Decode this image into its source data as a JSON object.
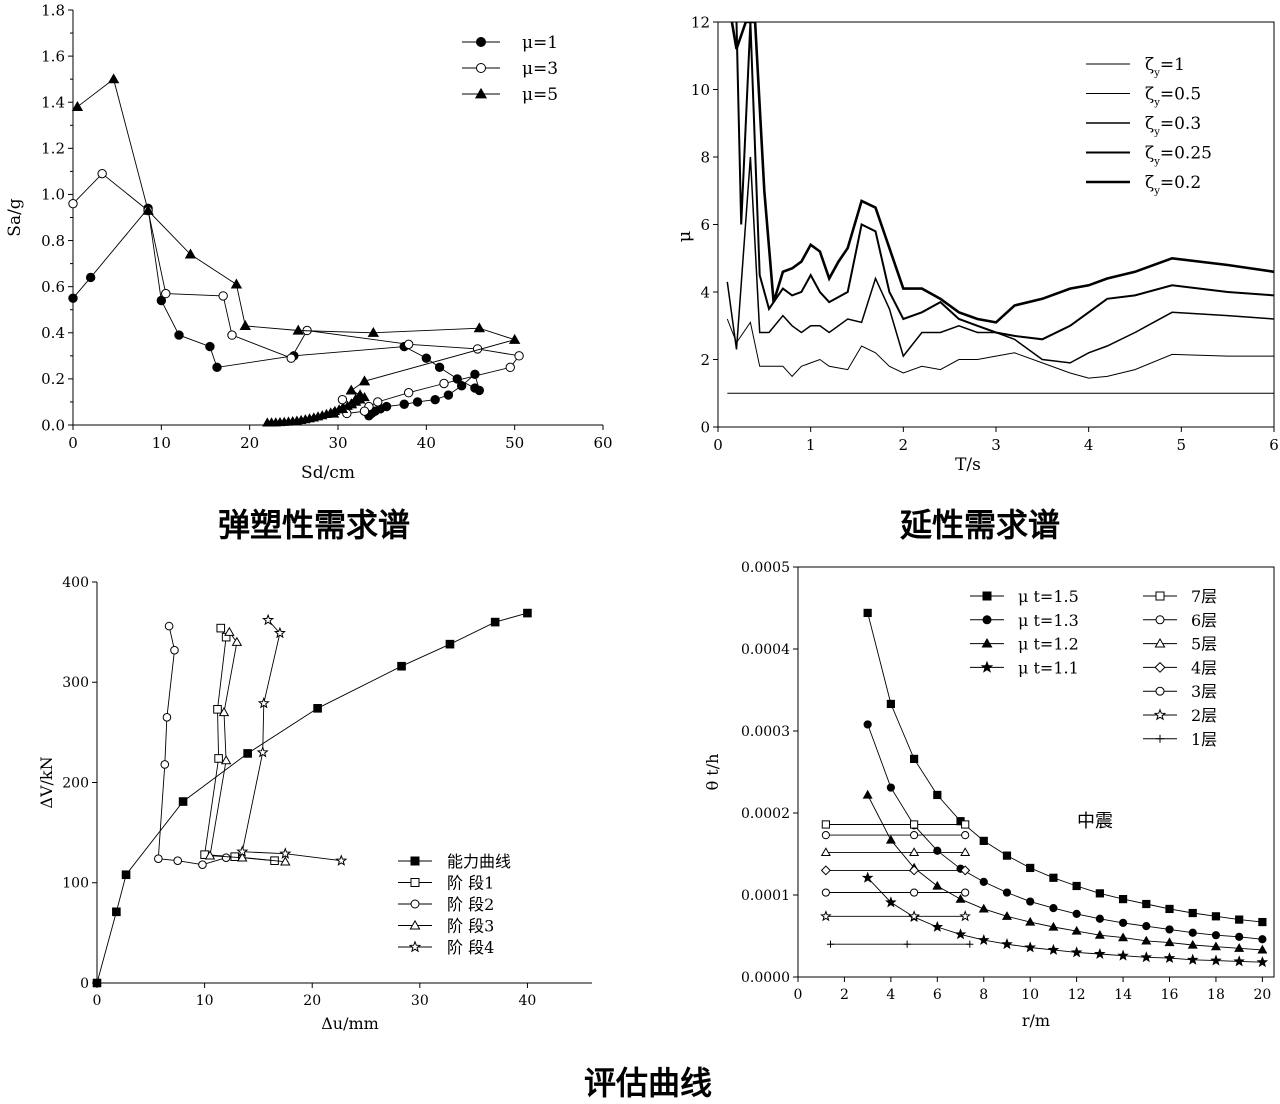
{
  "captions": {
    "chart1": "弹塑性需求谱",
    "chart2": "延性需求谱",
    "chart3": "评估曲线"
  },
  "chart_data": [
    {
      "type": "scatter",
      "xlabel": "Sd/cm",
      "ylabel": "Sa/g",
      "xlim": [
        0,
        60
      ],
      "ylim": [
        0,
        1.8
      ],
      "x_ticks": [
        "0",
        "10",
        "20",
        "30",
        "40",
        "50",
        "60"
      ],
      "y_ticks": [
        "0.0",
        "0.2",
        "0.4",
        "0.6",
        "0.8",
        "1.0",
        "1.2",
        "1.4",
        "1.6",
        "1.8"
      ],
      "legend_position": "top-right",
      "series": [
        {
          "name": "μ=1",
          "marker": "filled-circle",
          "x": [
            0,
            2,
            8.5,
            10,
            12,
            15.5,
            16.3,
            25,
            37.5,
            40,
            41.5,
            43.5,
            45.5,
            46,
            45.5,
            44,
            42.5,
            41,
            39,
            37.5,
            35.5,
            34.8,
            34.2,
            33.8,
            33.5
          ],
          "y": [
            0.55,
            0.64,
            0.94,
            0.54,
            0.39,
            0.34,
            0.25,
            0.3,
            0.34,
            0.29,
            0.25,
            0.2,
            0.16,
            0.15,
            0.22,
            0.17,
            0.13,
            0.11,
            0.1,
            0.09,
            0.08,
            0.07,
            0.06,
            0.05,
            0.04
          ]
        },
        {
          "name": "μ=3",
          "marker": "open-circle",
          "x": [
            0,
            3.3,
            8.5,
            10.5,
            17,
            18,
            24.7,
            26.5,
            38,
            45.8,
            50.5,
            49.5,
            42,
            38,
            34.5,
            33.5,
            33,
            31,
            30.5
          ],
          "y": [
            0.96,
            1.09,
            0.93,
            0.57,
            0.56,
            0.39,
            0.29,
            0.41,
            0.35,
            0.33,
            0.3,
            0.25,
            0.18,
            0.14,
            0.1,
            0.08,
            0.06,
            0.05,
            0.11
          ]
        },
        {
          "name": "μ=5",
          "marker": "filled-triangle",
          "x": [
            0.5,
            4.6,
            8.5,
            13.3,
            18.5,
            19.5,
            25.5,
            34,
            46,
            50,
            33,
            31.5,
            32.5,
            32,
            31.5,
            30.5,
            29.5
          ],
          "y": [
            1.38,
            1.5,
            0.93,
            0.74,
            0.61,
            0.43,
            0.41,
            0.4,
            0.42,
            0.37,
            0.19,
            0.15,
            0.13,
            0.11,
            0.09,
            0.07,
            0.05
          ]
        }
      ],
      "tail_cluster": {
        "x_from": 22,
        "x_to": 33,
        "y_from": 0.01,
        "y_to": 0.12
      }
    },
    {
      "type": "line",
      "xlabel": "T/s",
      "ylabel": "μ",
      "xlim": [
        0,
        6
      ],
      "ylim": [
        0,
        12
      ],
      "x_ticks": [
        "0",
        "1",
        "2",
        "3",
        "4",
        "5",
        "6"
      ],
      "y_ticks": [
        "0",
        "2",
        "4",
        "6",
        "8",
        "10",
        "12"
      ],
      "legend_position": "top-right",
      "series": [
        {
          "name": "ζ",
          "sub": "y",
          "suffix": "=1",
          "stroke": 1,
          "x": [
            0.1,
            6
          ],
          "y": [
            1,
            1
          ]
        },
        {
          "name": "ζ",
          "sub": "y",
          "suffix": "=0.5",
          "stroke": 1,
          "x": [
            0.1,
            0.2,
            0.35,
            0.45,
            0.55,
            0.7,
            0.8,
            0.9,
            1.0,
            1.1,
            1.2,
            1.4,
            1.55,
            1.7,
            1.85,
            2.0,
            2.2,
            2.4,
            2.6,
            2.8,
            3.0,
            3.2,
            3.5,
            3.8,
            4.0,
            4.2,
            4.5,
            4.9,
            5.5,
            6.0
          ],
          "y": [
            3.2,
            2.5,
            3.1,
            1.8,
            1.8,
            1.8,
            1.5,
            1.8,
            1.9,
            2.0,
            1.8,
            1.7,
            2.4,
            2.2,
            1.8,
            1.6,
            1.8,
            1.7,
            2.0,
            2.0,
            2.1,
            2.2,
            1.9,
            1.6,
            1.45,
            1.5,
            1.7,
            2.15,
            2.1,
            2.1
          ]
        },
        {
          "name": "ζ",
          "sub": "y",
          "suffix": "=0.3",
          "stroke": 1.5,
          "x": [
            0.1,
            0.2,
            0.35,
            0.45,
            0.55,
            0.7,
            0.8,
            0.9,
            1.0,
            1.1,
            1.2,
            1.4,
            1.55,
            1.7,
            1.85,
            2.0,
            2.2,
            2.4,
            2.6,
            2.8,
            3.0,
            3.2,
            3.5,
            3.8,
            4.0,
            4.2,
            4.5,
            4.9,
            5.5,
            6.0
          ],
          "y": [
            4.3,
            2.3,
            8.0,
            2.8,
            2.8,
            3.3,
            3.0,
            2.8,
            3.0,
            3.0,
            2.8,
            3.2,
            3.1,
            4.4,
            3.5,
            2.1,
            2.8,
            2.8,
            3.0,
            2.8,
            2.8,
            2.6,
            2.0,
            1.9,
            2.2,
            2.4,
            2.8,
            3.4,
            3.3,
            3.2
          ]
        },
        {
          "name": "ζ",
          "sub": "y",
          "suffix": "=0.25",
          "stroke": 2,
          "x": [
            0.2,
            0.25,
            0.35,
            0.45,
            0.55,
            0.7,
            0.8,
            0.9,
            1.0,
            1.1,
            1.2,
            1.4,
            1.55,
            1.7,
            1.85,
            2.0,
            2.2,
            2.4,
            2.6,
            2.8,
            3.0,
            3.2,
            3.5,
            3.8,
            4.0,
            4.2,
            4.5,
            4.9,
            5.5,
            6.0
          ],
          "y": [
            12,
            6.0,
            12,
            4.5,
            3.5,
            4.1,
            3.9,
            4.0,
            4.5,
            4.0,
            3.7,
            4.0,
            6.0,
            5.8,
            4.0,
            3.2,
            3.4,
            3.7,
            3.2,
            3.0,
            2.8,
            2.7,
            2.6,
            3.0,
            3.4,
            3.8,
            3.9,
            4.2,
            4.0,
            3.9
          ]
        },
        {
          "name": "ζ",
          "sub": "y",
          "suffix": "=0.2",
          "stroke": 2.6,
          "x": [
            0.15,
            0.2,
            0.3,
            0.4,
            0.5,
            0.6,
            0.7,
            0.8,
            0.9,
            1.0,
            1.1,
            1.2,
            1.3,
            1.4,
            1.55,
            1.7,
            1.85,
            2.0,
            2.2,
            2.4,
            2.6,
            2.8,
            3.0,
            3.2,
            3.5,
            3.8,
            4.0,
            4.2,
            4.5,
            4.9,
            5.5,
            6.0
          ],
          "y": [
            12,
            11.2,
            12,
            12,
            7.0,
            3.7,
            4.6,
            4.7,
            4.9,
            5.4,
            5.2,
            4.4,
            4.9,
            5.3,
            6.7,
            6.5,
            5.3,
            4.1,
            4.1,
            3.8,
            3.4,
            3.2,
            3.1,
            3.6,
            3.8,
            4.1,
            4.2,
            4.4,
            4.6,
            5.0,
            4.8,
            4.6
          ]
        }
      ]
    },
    {
      "type": "scatter",
      "xlabel": "Δu/mm",
      "ylabel": "ΔV/kN",
      "xlim": [
        0,
        46
      ],
      "ylim": [
        0,
        400
      ],
      "x_ticks": [
        "0",
        "10",
        "20",
        "30",
        "40"
      ],
      "y_ticks": [
        "0",
        "100",
        "200",
        "300",
        "400"
      ],
      "legend_position": "bottom-right",
      "series": [
        {
          "name": "能力曲线",
          "marker": "filled-square",
          "x": [
            0,
            1.8,
            2.7,
            8,
            14,
            20.5,
            28.3,
            32.8,
            37,
            40
          ],
          "y": [
            0,
            71,
            108,
            181,
            229,
            274,
            316,
            338,
            360,
            369
          ]
        },
        {
          "name": "阶 段1",
          "marker": "open-square",
          "x": [
            11.5,
            12,
            11.2,
            11.3,
            10,
            12.8,
            16.5
          ],
          "y": [
            354,
            345,
            273,
            224,
            128,
            126,
            122
          ]
        },
        {
          "name": "阶 段2",
          "marker": "open-circle",
          "x": [
            6.7,
            7.2,
            6.5,
            6.3,
            5.7,
            7.5,
            9.8,
            12
          ],
          "y": [
            356,
            332,
            265,
            218,
            124,
            122,
            118,
            125
          ]
        },
        {
          "name": "阶 段3",
          "marker": "open-triangle",
          "x": [
            12.3,
            13,
            11.8,
            12,
            10.5,
            13.5,
            17.5
          ],
          "y": [
            350,
            340,
            270,
            222,
            127,
            125,
            121
          ]
        },
        {
          "name": "阶 段4",
          "marker": "open-star",
          "x": [
            15.9,
            17,
            15.5,
            15.4,
            13.5,
            17.5,
            22.7
          ],
          "y": [
            362,
            349,
            279,
            230,
            131,
            129,
            122
          ]
        }
      ]
    },
    {
      "type": "scatter",
      "xlabel": "r/m",
      "ylabel": "θ t/h",
      "xlim": [
        0,
        20.5
      ],
      "ylim": [
        0,
        0.0005
      ],
      "x_ticks": [
        "0",
        "2",
        "4",
        "6",
        "8",
        "10",
        "12",
        "14",
        "16",
        "18",
        "20"
      ],
      "y_ticks": [
        "0.0000",
        "0.0001",
        "0.0002",
        "0.0003",
        "0.0004",
        "0.0005"
      ],
      "legend_position": "top-right",
      "annotation": "中震",
      "series": [
        {
          "name": "μ t=1.5",
          "marker": "filled-square",
          "x": [
            3,
            4,
            5,
            6,
            7,
            8,
            9,
            10,
            11,
            12,
            13,
            14,
            15,
            16,
            17,
            18,
            19,
            20
          ],
          "y": [
            0.000444,
            0.000333,
            0.000266,
            0.000222,
            0.00019,
            0.000166,
            0.000148,
            0.000133,
            0.000121,
            0.000111,
            0.000102,
            9.5e-05,
            8.9e-05,
            8.3e-05,
            7.8e-05,
            7.4e-05,
            7e-05,
            6.7e-05
          ]
        },
        {
          "name": "μ t=1.3",
          "marker": "filled-circle",
          "x": [
            3,
            4,
            5,
            6,
            7,
            8,
            9,
            10,
            11,
            12,
            13,
            14,
            15,
            16,
            17,
            18,
            19,
            20
          ],
          "y": [
            0.000308,
            0.000231,
            0.000185,
            0.000154,
            0.000132,
            0.000116,
            0.000103,
            9.2e-05,
            8.4e-05,
            7.7e-05,
            7.1e-05,
            6.6e-05,
            6.2e-05,
            5.8e-05,
            5.4e-05,
            5.1e-05,
            4.9e-05,
            4.6e-05
          ]
        },
        {
          "name": "μ t=1.2",
          "marker": "filled-triangle",
          "x": [
            3,
            4,
            5,
            6,
            7,
            8,
            9,
            10,
            11,
            12,
            13,
            14,
            15,
            16,
            17,
            18,
            19,
            20
          ],
          "y": [
            0.000222,
            0.000167,
            0.000133,
            0.000111,
            9.5e-05,
            8.3e-05,
            7.4e-05,
            6.7e-05,
            6.1e-05,
            5.6e-05,
            5.1e-05,
            4.8e-05,
            4.4e-05,
            4.2e-05,
            3.9e-05,
            3.7e-05,
            3.5e-05,
            3.3e-05
          ]
        },
        {
          "name": "μ t=1.1",
          "marker": "filled-star",
          "x": [
            3,
            4,
            5,
            6,
            7,
            8,
            9,
            10,
            11,
            12,
            13,
            14,
            15,
            16,
            17,
            18,
            19,
            20
          ],
          "y": [
            0.000121,
            9.1e-05,
            7.3e-05,
            6.1e-05,
            5.2e-05,
            4.5e-05,
            4e-05,
            3.6e-05,
            3.3e-05,
            3e-05,
            2.8e-05,
            2.6e-05,
            2.4e-05,
            2.3e-05,
            2.1e-05,
            2e-05,
            1.9e-05,
            1.8e-05
          ]
        },
        {
          "name": "7层",
          "marker": "open-square",
          "x": [
            1.2,
            5,
            7.2
          ],
          "y": [
            0.000186,
            0.000186,
            0.000186
          ]
        },
        {
          "name": "6层",
          "marker": "open-circle",
          "x": [
            1.2,
            5,
            7.2
          ],
          "y": [
            0.000173,
            0.000173,
            0.000173
          ]
        },
        {
          "name": "5层",
          "marker": "open-triangle",
          "x": [
            1.2,
            5,
            7.2
          ],
          "y": [
            0.000152,
            0.000152,
            0.000152
          ]
        },
        {
          "name": "4层",
          "marker": "open-diamond",
          "x": [
            1.2,
            5,
            7.2
          ],
          "y": [
            0.00013,
            0.00013,
            0.00013
          ]
        },
        {
          "name": "3层",
          "marker": "open-circle",
          "x": [
            1.2,
            5,
            7.2
          ],
          "y": [
            0.000103,
            0.000103,
            0.000103
          ]
        },
        {
          "name": "2层",
          "marker": "open-star",
          "x": [
            1.2,
            5,
            7.2
          ],
          "y": [
            7.4e-05,
            7.4e-05,
            7.4e-05
          ]
        },
        {
          "name": "1层",
          "marker": "plus",
          "x": [
            1.4,
            4.7,
            7.4
          ],
          "y": [
            4e-05,
            4e-05,
            4e-05
          ]
        }
      ]
    }
  ]
}
